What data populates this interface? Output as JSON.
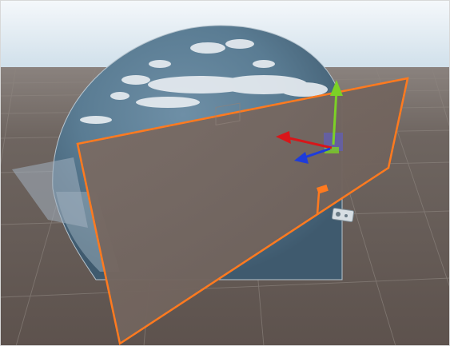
{
  "scene": {
    "view_mode": "perspective",
    "grid": "on",
    "colors": {
      "selection_outline": "#ff7a1f",
      "ground": "#625752",
      "horizon": "#8c8580",
      "sky_top": "#f4f7fb",
      "sky_bottom": "#cfe1ee",
      "gizmo_x_axis": "#d8161a",
      "gizmo_y_axis": "#7cd126",
      "gizmo_z_axis": "#1e3cdb",
      "gizmo_center_plane": "#5b5bd6"
    },
    "objects": [
      {
        "name": "skybox-sphere",
        "icon": "skybox-sphere"
      },
      {
        "name": "selected-plane",
        "icon": "plane"
      },
      {
        "name": "transform-gizmo",
        "icon": "move-gizmo"
      },
      {
        "name": "light-probe-marker",
        "icon": "orange-marker"
      },
      {
        "name": "camera-icon",
        "icon": "camera"
      }
    ]
  }
}
